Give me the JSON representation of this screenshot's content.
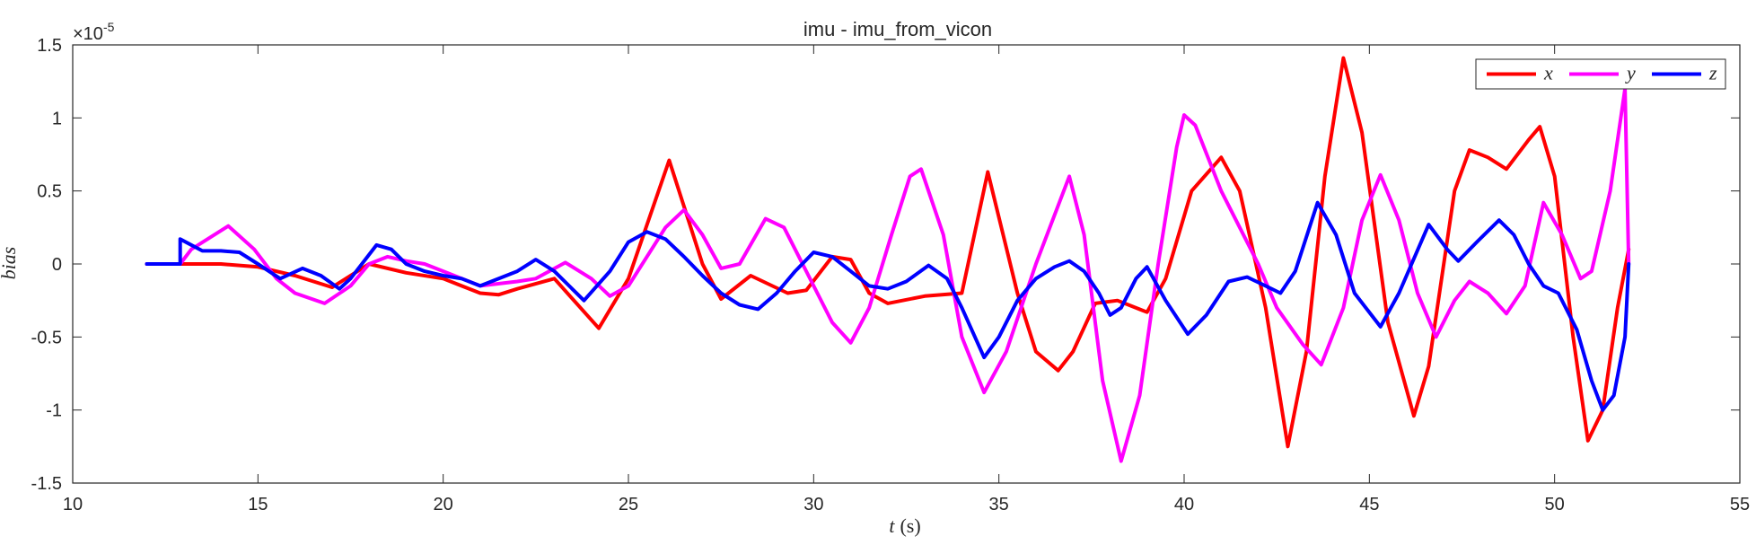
{
  "chart_data": {
    "type": "line",
    "title": "imu - imu_from_vicon",
    "xlabel": "t",
    "xlabel_unit": "(s)",
    "ylabel": "bias",
    "y_exponent_label": "×10",
    "y_exponent_power": "-5",
    "xlim": [
      10,
      55
    ],
    "ylim": [
      -1.5,
      1.5
    ],
    "x_ticks": [
      "10",
      "15",
      "20",
      "25",
      "30",
      "35",
      "40",
      "45",
      "50",
      "55"
    ],
    "y_ticks": [
      "-1.5",
      "-1",
      "-0.5",
      "0",
      "0.5",
      "1",
      "1.5"
    ],
    "x_tick_values": [
      10,
      15,
      20,
      25,
      30,
      35,
      40,
      45,
      50,
      55
    ],
    "y_tick_values": [
      -1.5,
      -1,
      -0.5,
      0,
      0.5,
      1,
      1.5
    ],
    "grid": false,
    "legend_position": "top-right",
    "legend_orientation": "horizontal",
    "series": [
      {
        "name": "x",
        "color": "#ff0000",
        "points": [
          [
            12.0,
            0.0
          ],
          [
            12.9,
            0.0
          ],
          [
            14.0,
            0.0
          ],
          [
            15.0,
            -0.02
          ],
          [
            16.0,
            -0.08
          ],
          [
            17.0,
            -0.16
          ],
          [
            18.0,
            0.0
          ],
          [
            19.0,
            -0.06
          ],
          [
            20.0,
            -0.1
          ],
          [
            21.0,
            -0.2
          ],
          [
            21.5,
            -0.21
          ],
          [
            22.0,
            -0.17
          ],
          [
            23.0,
            -0.1
          ],
          [
            24.2,
            -0.44
          ],
          [
            25.0,
            -0.1
          ],
          [
            26.1,
            0.71
          ],
          [
            27.0,
            0.0
          ],
          [
            27.5,
            -0.24
          ],
          [
            28.3,
            -0.08
          ],
          [
            29.3,
            -0.2
          ],
          [
            29.8,
            -0.18
          ],
          [
            30.5,
            0.05
          ],
          [
            31.0,
            0.03
          ],
          [
            31.5,
            -0.2
          ],
          [
            32.0,
            -0.27
          ],
          [
            33.0,
            -0.22
          ],
          [
            34.0,
            -0.2
          ],
          [
            34.7,
            0.63
          ],
          [
            35.5,
            -0.2
          ],
          [
            36.0,
            -0.6
          ],
          [
            36.6,
            -0.73
          ],
          [
            37.0,
            -0.6
          ],
          [
            37.6,
            -0.27
          ],
          [
            38.2,
            -0.25
          ],
          [
            39.0,
            -0.33
          ],
          [
            39.5,
            -0.1
          ],
          [
            40.2,
            0.5
          ],
          [
            41.0,
            0.73
          ],
          [
            41.5,
            0.5
          ],
          [
            42.2,
            -0.3
          ],
          [
            42.8,
            -1.25
          ],
          [
            43.3,
            -0.6
          ],
          [
            43.8,
            0.6
          ],
          [
            44.3,
            1.41
          ],
          [
            44.8,
            0.9
          ],
          [
            45.5,
            -0.4
          ],
          [
            46.2,
            -1.04
          ],
          [
            46.6,
            -0.7
          ],
          [
            47.3,
            0.5
          ],
          [
            47.7,
            0.78
          ],
          [
            48.2,
            0.73
          ],
          [
            48.7,
            0.65
          ],
          [
            49.3,
            0.85
          ],
          [
            49.6,
            0.94
          ],
          [
            50.0,
            0.6
          ],
          [
            50.5,
            -0.5
          ],
          [
            50.9,
            -1.21
          ],
          [
            51.3,
            -1.0
          ],
          [
            51.7,
            -0.3
          ],
          [
            52.0,
            0.1
          ]
        ]
      },
      {
        "name": "y",
        "color": "#ff00ff",
        "points": [
          [
            12.0,
            0.0
          ],
          [
            12.9,
            0.0
          ],
          [
            13.2,
            0.1
          ],
          [
            14.2,
            0.26
          ],
          [
            14.9,
            0.1
          ],
          [
            15.5,
            -0.1
          ],
          [
            16.0,
            -0.2
          ],
          [
            16.8,
            -0.27
          ],
          [
            17.5,
            -0.15
          ],
          [
            18.0,
            0.0
          ],
          [
            18.5,
            0.05
          ],
          [
            19.0,
            0.02
          ],
          [
            19.5,
            0.0
          ],
          [
            20.0,
            -0.05
          ],
          [
            21.0,
            -0.15
          ],
          [
            22.0,
            -0.12
          ],
          [
            22.5,
            -0.1
          ],
          [
            23.3,
            0.01
          ],
          [
            24.0,
            -0.1
          ],
          [
            24.5,
            -0.22
          ],
          [
            25.0,
            -0.15
          ],
          [
            25.5,
            0.05
          ],
          [
            26.0,
            0.25
          ],
          [
            26.5,
            0.37
          ],
          [
            27.0,
            0.2
          ],
          [
            27.5,
            -0.03
          ],
          [
            28.0,
            0.0
          ],
          [
            28.7,
            0.31
          ],
          [
            29.2,
            0.25
          ],
          [
            29.8,
            -0.05
          ],
          [
            30.5,
            -0.4
          ],
          [
            31.0,
            -0.54
          ],
          [
            31.5,
            -0.3
          ],
          [
            32.1,
            0.2
          ],
          [
            32.6,
            0.6
          ],
          [
            32.9,
            0.65
          ],
          [
            33.5,
            0.2
          ],
          [
            34.0,
            -0.5
          ],
          [
            34.6,
            -0.88
          ],
          [
            35.2,
            -0.6
          ],
          [
            36.0,
            0.0
          ],
          [
            36.9,
            0.6
          ],
          [
            37.3,
            0.2
          ],
          [
            37.8,
            -0.8
          ],
          [
            38.3,
            -1.35
          ],
          [
            38.8,
            -0.9
          ],
          [
            39.3,
            0.0
          ],
          [
            39.8,
            0.8
          ],
          [
            40.0,
            1.02
          ],
          [
            40.3,
            0.95
          ],
          [
            41.0,
            0.5
          ],
          [
            41.5,
            0.25
          ],
          [
            42.0,
            0.0
          ],
          [
            42.5,
            -0.3
          ],
          [
            43.2,
            -0.55
          ],
          [
            43.7,
            -0.69
          ],
          [
            44.3,
            -0.3
          ],
          [
            44.8,
            0.3
          ],
          [
            45.3,
            0.61
          ],
          [
            45.8,
            0.3
          ],
          [
            46.3,
            -0.2
          ],
          [
            46.8,
            -0.5
          ],
          [
            47.3,
            -0.25
          ],
          [
            47.7,
            -0.12
          ],
          [
            48.2,
            -0.2
          ],
          [
            48.7,
            -0.34
          ],
          [
            49.2,
            -0.15
          ],
          [
            49.7,
            0.42
          ],
          [
            50.2,
            0.2
          ],
          [
            50.7,
            -0.1
          ],
          [
            51.0,
            -0.05
          ],
          [
            51.5,
            0.5
          ],
          [
            51.9,
            1.2
          ],
          [
            52.0,
            0.0
          ]
        ]
      },
      {
        "name": "z",
        "color": "#0000ff",
        "points": [
          [
            12.0,
            0.0
          ],
          [
            12.9,
            0.0
          ],
          [
            12.9,
            0.17
          ],
          [
            13.5,
            0.09
          ],
          [
            14.0,
            0.09
          ],
          [
            14.5,
            0.08
          ],
          [
            15.0,
            0.0
          ],
          [
            15.6,
            -0.1
          ],
          [
            16.2,
            -0.03
          ],
          [
            16.7,
            -0.08
          ],
          [
            17.2,
            -0.17
          ],
          [
            17.5,
            -0.1
          ],
          [
            18.2,
            0.13
          ],
          [
            18.6,
            0.1
          ],
          [
            19.0,
            0.0
          ],
          [
            19.5,
            -0.05
          ],
          [
            20.0,
            -0.08
          ],
          [
            20.5,
            -0.1
          ],
          [
            21.0,
            -0.15
          ],
          [
            22.0,
            -0.05
          ],
          [
            22.5,
            0.03
          ],
          [
            23.0,
            -0.05
          ],
          [
            23.8,
            -0.25
          ],
          [
            24.5,
            -0.05
          ],
          [
            25.0,
            0.15
          ],
          [
            25.5,
            0.22
          ],
          [
            26.0,
            0.17
          ],
          [
            26.5,
            0.05
          ],
          [
            27.0,
            -0.08
          ],
          [
            27.5,
            -0.2
          ],
          [
            28.0,
            -0.28
          ],
          [
            28.5,
            -0.31
          ],
          [
            29.0,
            -0.2
          ],
          [
            29.5,
            -0.05
          ],
          [
            30.0,
            0.08
          ],
          [
            30.5,
            0.05
          ],
          [
            31.0,
            -0.05
          ],
          [
            31.5,
            -0.15
          ],
          [
            32.0,
            -0.17
          ],
          [
            32.5,
            -0.12
          ],
          [
            33.1,
            -0.01
          ],
          [
            33.6,
            -0.1
          ],
          [
            34.0,
            -0.3
          ],
          [
            34.6,
            -0.64
          ],
          [
            35.0,
            -0.5
          ],
          [
            35.5,
            -0.25
          ],
          [
            36.0,
            -0.1
          ],
          [
            36.5,
            -0.02
          ],
          [
            36.9,
            0.02
          ],
          [
            37.3,
            -0.05
          ],
          [
            37.7,
            -0.2
          ],
          [
            38.0,
            -0.35
          ],
          [
            38.3,
            -0.3
          ],
          [
            38.7,
            -0.1
          ],
          [
            39.0,
            -0.02
          ],
          [
            39.5,
            -0.25
          ],
          [
            40.1,
            -0.48
          ],
          [
            40.6,
            -0.35
          ],
          [
            41.2,
            -0.12
          ],
          [
            41.7,
            -0.09
          ],
          [
            42.2,
            -0.15
          ],
          [
            42.6,
            -0.2
          ],
          [
            43.0,
            -0.05
          ],
          [
            43.6,
            0.42
          ],
          [
            44.1,
            0.2
          ],
          [
            44.6,
            -0.2
          ],
          [
            45.3,
            -0.43
          ],
          [
            45.8,
            -0.2
          ],
          [
            46.6,
            0.27
          ],
          [
            47.1,
            0.1
          ],
          [
            47.4,
            0.02
          ],
          [
            47.9,
            0.15
          ],
          [
            48.5,
            0.3
          ],
          [
            48.9,
            0.2
          ],
          [
            49.3,
            0.0
          ],
          [
            49.7,
            -0.15
          ],
          [
            50.1,
            -0.2
          ],
          [
            50.6,
            -0.45
          ],
          [
            51.0,
            -0.8
          ],
          [
            51.3,
            -1.0
          ],
          [
            51.6,
            -0.9
          ],
          [
            51.9,
            -0.5
          ],
          [
            52.0,
            0.0
          ]
        ]
      }
    ]
  }
}
